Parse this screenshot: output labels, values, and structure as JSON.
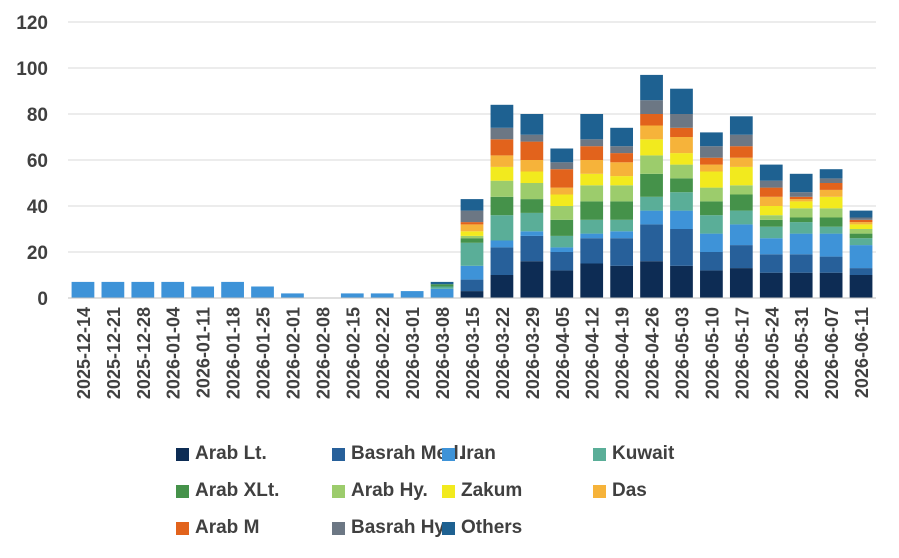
{
  "chart_data": {
    "type": "bar",
    "stacked": true,
    "title": "",
    "xlabel": "",
    "ylabel": "",
    "ylim": [
      0,
      120
    ],
    "yticks": [
      0,
      20,
      40,
      60,
      80,
      100,
      120
    ],
    "grid": "horizontal",
    "legend_position": "bottom",
    "categories": [
      "2025-12-14",
      "2025-12-21",
      "2025-12-28",
      "2026-01-04",
      "2026-01-11",
      "2026-01-18",
      "2026-01-25",
      "2026-02-01",
      "2026-02-08",
      "2026-02-15",
      "2026-02-22",
      "2026-03-01",
      "2026-03-08",
      "2026-03-15",
      "2026-03-22",
      "2026-03-29",
      "2026-04-05",
      "2026-04-12",
      "2026-04-19",
      "2026-04-26",
      "2026-05-03",
      "2026-05-10",
      "2026-05-17",
      "2026-05-24",
      "2026-05-31",
      "2026-06-07",
      "2026-06-11"
    ],
    "series": [
      {
        "name": "Arab Lt.",
        "color": "#0d2c54",
        "values": [
          0,
          0,
          0,
          0,
          0,
          0,
          0,
          0,
          0,
          0,
          0,
          0,
          0,
          3,
          10,
          16,
          12,
          15,
          14,
          16,
          14,
          12,
          13,
          11,
          11,
          11,
          10
        ]
      },
      {
        "name": "Basrah Med.",
        "color": "#27609a",
        "values": [
          0,
          0,
          0,
          0,
          0,
          0,
          0,
          0,
          0,
          0,
          0,
          0,
          0,
          5,
          12,
          11,
          8,
          11,
          12,
          16,
          16,
          8,
          10,
          8,
          8,
          7,
          3
        ]
      },
      {
        "name": "Iran",
        "color": "#3e93d8",
        "values": [
          7,
          7,
          7,
          7,
          5,
          7,
          5,
          2,
          0,
          2,
          2,
          3,
          4,
          6,
          3,
          2,
          2,
          2,
          3,
          6,
          8,
          8,
          9,
          7,
          9,
          10,
          10
        ]
      },
      {
        "name": "Kuwait",
        "color": "#5aae98",
        "values": [
          0,
          0,
          0,
          0,
          0,
          0,
          0,
          0,
          0,
          0,
          0,
          0,
          1,
          10,
          11,
          8,
          5,
          6,
          5,
          6,
          8,
          8,
          6,
          5,
          5,
          3,
          3
        ]
      },
      {
        "name": "Arab XLt.",
        "color": "#45924a",
        "values": [
          0,
          0,
          0,
          0,
          0,
          0,
          0,
          0,
          0,
          0,
          0,
          0,
          1,
          2,
          8,
          6,
          7,
          8,
          8,
          10,
          6,
          6,
          7,
          3,
          2,
          4,
          2
        ]
      },
      {
        "name": "Arab Hy.",
        "color": "#9ccc6c",
        "values": [
          0,
          0,
          0,
          0,
          0,
          0,
          0,
          0,
          0,
          0,
          0,
          0,
          0,
          1,
          7,
          7,
          6,
          7,
          7,
          8,
          6,
          6,
          4,
          2,
          4,
          4,
          2
        ]
      },
      {
        "name": "Zakum",
        "color": "#f2ea1e",
        "values": [
          0,
          0,
          0,
          0,
          0,
          0,
          0,
          0,
          0,
          0,
          0,
          0,
          0,
          2,
          6,
          5,
          5,
          5,
          4,
          7,
          5,
          7,
          8,
          4,
          3,
          5,
          2
        ]
      },
      {
        "name": "Das",
        "color": "#f6b33a",
        "values": [
          0,
          0,
          0,
          0,
          0,
          0,
          0,
          0,
          0,
          0,
          0,
          0,
          0,
          3,
          5,
          5,
          3,
          6,
          6,
          6,
          7,
          3,
          4,
          4,
          1,
          3,
          1
        ]
      },
      {
        "name": "Arab M",
        "color": "#e2631c",
        "values": [
          0,
          0,
          0,
          0,
          0,
          0,
          0,
          0,
          0,
          0,
          0,
          0,
          0,
          1,
          7,
          8,
          8,
          6,
          4,
          5,
          4,
          3,
          5,
          4,
          1,
          3,
          1
        ]
      },
      {
        "name": "Basrah Hy.",
        "color": "#6c7784",
        "values": [
          0,
          0,
          0,
          0,
          0,
          0,
          0,
          0,
          0,
          0,
          0,
          0,
          0,
          5,
          5,
          3,
          3,
          3,
          3,
          6,
          6,
          5,
          5,
          3,
          2,
          2,
          1
        ]
      },
      {
        "name": "Others",
        "color": "#1e6191",
        "values": [
          0,
          0,
          0,
          0,
          0,
          0,
          0,
          0,
          0,
          0,
          0,
          0,
          1,
          5,
          10,
          9,
          6,
          11,
          8,
          11,
          11,
          6,
          8,
          7,
          8,
          4,
          3
        ]
      }
    ]
  }
}
